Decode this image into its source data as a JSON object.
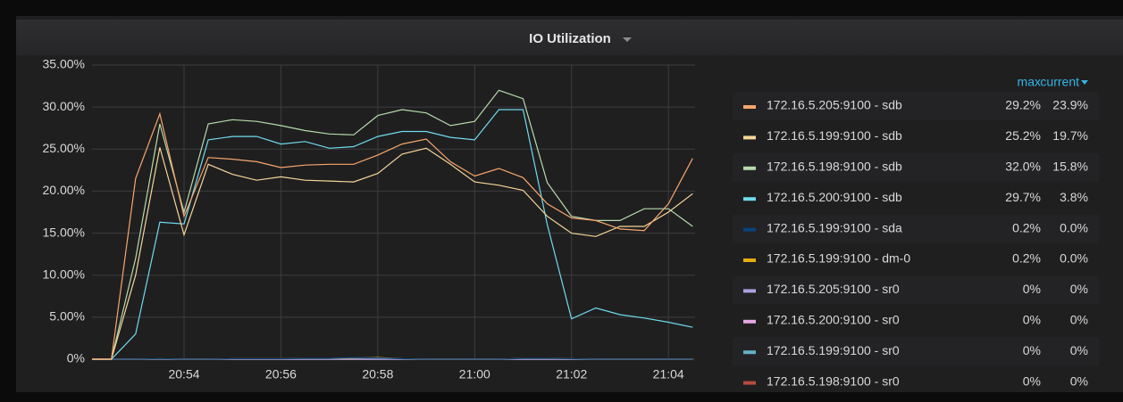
{
  "chart_data": {
    "type": "line",
    "title": "IO Utilization",
    "x": [
      1252.1,
      1252.5,
      1253,
      1253.5,
      1254,
      1254.5,
      1255,
      1255.5,
      1256,
      1256.5,
      1257,
      1257.5,
      1258,
      1258.5,
      1259,
      1259.5,
      1260,
      1260.5,
      1261,
      1261.5,
      1262,
      1262.5,
      1263,
      1263.5,
      1264,
      1264.5
    ],
    "xlim": [
      1252.1,
      1264.55
    ],
    "xticks": [
      {
        "value": 1254,
        "label": "20:54"
      },
      {
        "value": 1256,
        "label": "20:56"
      },
      {
        "value": 1258,
        "label": "20:58"
      },
      {
        "value": 1260,
        "label": "21:00"
      },
      {
        "value": 1262,
        "label": "21:02"
      },
      {
        "value": 1264,
        "label": "21:04"
      }
    ],
    "ylim": [
      0,
      35
    ],
    "yticks": [
      {
        "value": 0,
        "label": "0%"
      },
      {
        "value": 5,
        "label": "5.00%"
      },
      {
        "value": 10,
        "label": "10.00%"
      },
      {
        "value": 15,
        "label": "15.00%"
      },
      {
        "value": 20,
        "label": "20.00%"
      },
      {
        "value": 25,
        "label": "25.00%"
      },
      {
        "value": 30,
        "label": "30.00%"
      },
      {
        "value": 35,
        "label": "35.00%"
      }
    ],
    "grid": true,
    "legend_columns": [
      "max",
      "current"
    ],
    "series": [
      {
        "name": "172.16.5.205:9100 - sdb",
        "color": "#f9a66c",
        "max": "29.2%",
        "current": "23.9%",
        "values": [
          0,
          0,
          21.5,
          29.2,
          17,
          24,
          23.8,
          23.5,
          22.8,
          23.1,
          23.2,
          23.2,
          24.3,
          25.6,
          26.2,
          23.5,
          21.8,
          22.7,
          21.6,
          18.5,
          16.8,
          16.5,
          15.5,
          15.3,
          18.5,
          23.9
        ]
      },
      {
        "name": "172.16.5.199:9100 - sdb",
        "color": "#f4d598",
        "max": "25.2%",
        "current": "19.7%",
        "values": [
          0,
          0,
          10,
          25.2,
          14.8,
          23.2,
          22,
          21.3,
          21.7,
          21.3,
          21.2,
          21.1,
          22.1,
          24.4,
          25.1,
          23.2,
          21.1,
          20.7,
          20.1,
          17,
          15,
          14.6,
          15.8,
          15.8,
          17.5,
          19.7
        ]
      },
      {
        "name": "172.16.5.198:9100 - sdb",
        "color": "#b7dbab",
        "max": "32.0%",
        "current": "15.8%",
        "values": [
          0,
          0,
          12,
          28,
          17.5,
          28,
          28.5,
          28.3,
          27.8,
          27.2,
          26.8,
          26.7,
          29,
          29.7,
          29.3,
          27.8,
          28.3,
          32,
          31,
          21,
          17,
          16.5,
          16.5,
          17.9,
          17.9,
          15.8
        ]
      },
      {
        "name": "172.16.5.200:9100 - sdb",
        "color": "#70dbed",
        "max": "29.7%",
        "current": "3.8%",
        "values": [
          0,
          0,
          3,
          16.3,
          16.1,
          26.1,
          26.5,
          26.5,
          25.6,
          25.9,
          25.1,
          25.3,
          26.5,
          27.1,
          27.1,
          26.4,
          26.1,
          29.7,
          29.7,
          16,
          4.8,
          6.1,
          5.3,
          4.9,
          4.4,
          3.8
        ]
      },
      {
        "name": "172.16.5.199:9100 - sda",
        "color": "#0a437c",
        "max": "0.2%",
        "current": "0.0%",
        "values": [
          0,
          0,
          0,
          0.05,
          0,
          0,
          0.05,
          0.05,
          0.05,
          0.1,
          0.1,
          0.2,
          0.15,
          0.05,
          0,
          0,
          0,
          0,
          0.1,
          0.1,
          0.05,
          0,
          0,
          0,
          0,
          0
        ]
      },
      {
        "name": "172.16.5.199:9100 - dm-0",
        "color": "#e5ac0e",
        "max": "0.2%",
        "current": "0.0%",
        "values": [
          0,
          0,
          0,
          0.05,
          0,
          0,
          0.05,
          0.05,
          0.05,
          0.1,
          0.1,
          0.15,
          0.2,
          0.05,
          0,
          0,
          0,
          0,
          0.1,
          0.1,
          0.05,
          0,
          0,
          0,
          0,
          0
        ]
      },
      {
        "name": "172.16.5.205:9100 - sr0",
        "color": "#aea2e0",
        "max": "0%",
        "current": "0%",
        "values": [
          0,
          0,
          0,
          0,
          0,
          0,
          0,
          0,
          0,
          0,
          0,
          0,
          0,
          0,
          0,
          0,
          0,
          0,
          0,
          0,
          0,
          0,
          0,
          0,
          0,
          0
        ]
      },
      {
        "name": "172.16.5.200:9100 - sr0",
        "color": "#e5a8e2",
        "max": "0%",
        "current": "0%",
        "values": [
          0,
          0,
          0,
          0,
          0,
          0,
          0,
          0,
          0,
          0,
          0,
          0,
          0,
          0,
          0,
          0,
          0,
          0,
          0,
          0,
          0,
          0,
          0,
          0,
          0,
          0
        ]
      },
      {
        "name": "172.16.5.199:9100 - sr0",
        "color": "#64b0c8",
        "max": "0%",
        "current": "0%",
        "values": [
          0,
          0,
          0,
          0,
          0,
          0,
          0,
          0,
          0,
          0,
          0,
          0,
          0,
          0,
          0,
          0,
          0,
          0,
          0,
          0,
          0,
          0,
          0,
          0,
          0,
          0
        ]
      },
      {
        "name": "172.16.5.198:9100 - sr0",
        "color": "#b84a3f",
        "max": "0%",
        "current": "0%",
        "values": [
          0,
          0,
          0,
          0,
          0,
          0,
          0,
          0,
          0,
          0,
          0,
          0,
          0,
          0,
          0,
          0,
          0,
          0,
          0,
          0,
          0,
          0,
          0,
          0,
          0,
          0
        ]
      }
    ]
  }
}
